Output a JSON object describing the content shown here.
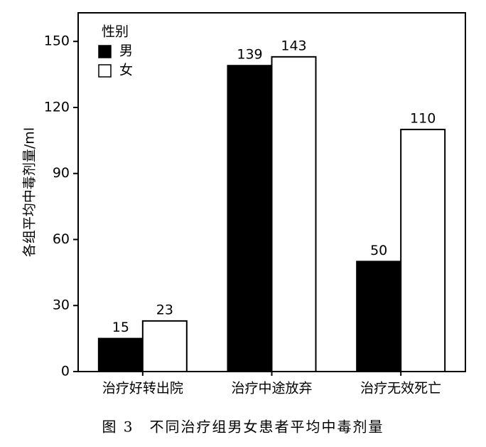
{
  "chart_data": {
    "type": "bar",
    "ylabel": "各组平均中毒剂量/ml",
    "caption": "图 3　不同治疗组男女患者平均中毒剂量",
    "categories": [
      "治疗好转出院",
      "治疗中途放弃",
      "治疗无效死亡"
    ],
    "series": [
      {
        "name": "男",
        "color": "#000000",
        "values": [
          15,
          139,
          50
        ]
      },
      {
        "name": "女",
        "color": "#ffffff",
        "values": [
          23,
          143,
          110
        ]
      }
    ],
    "legend_title": "性别",
    "legend": "upper left",
    "ylim": [
      0,
      163
    ],
    "yticks": [
      0,
      30,
      60,
      90,
      120,
      150
    ]
  }
}
